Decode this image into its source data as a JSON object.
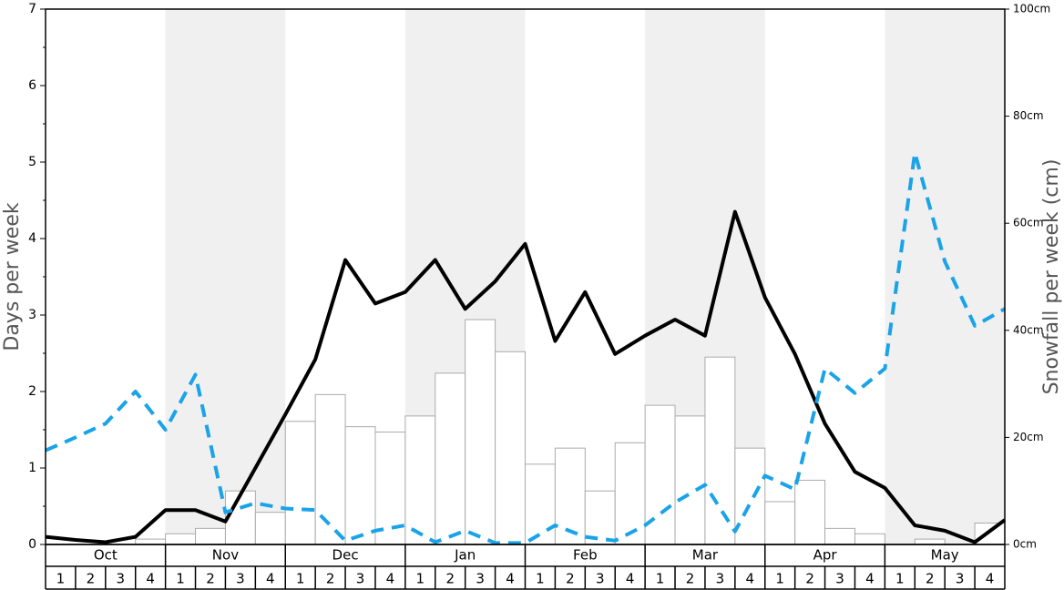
{
  "chart_data": {
    "type": "combo",
    "months": [
      "Oct",
      "Nov",
      "Dec",
      "Jan",
      "Feb",
      "Mar",
      "Apr",
      "May"
    ],
    "weeks": [
      1,
      2,
      3,
      4
    ],
    "shaded_color": "#f0f0f0",
    "ylabel": "Days per week",
    "y2label": "Snowfall per week (cm)",
    "ylim": [
      0,
      7
    ],
    "yticks": [
      0,
      1,
      2,
      3,
      4,
      5,
      6,
      7
    ],
    "yminorticks": [
      0.5,
      1.5,
      2.5,
      3.5,
      4.5,
      5.5,
      6.5
    ],
    "y2lim": [
      0,
      100
    ],
    "y2ticks": [
      {
        "value": 0,
        "label": "0cm"
      },
      {
        "value": 20,
        "label": "20cm"
      },
      {
        "value": 40,
        "label": "40cm"
      },
      {
        "value": 60,
        "label": "60cm"
      },
      {
        "value": 80,
        "label": "80cm"
      },
      {
        "value": 100,
        "label": "100cm"
      }
    ],
    "series": [
      {
        "type": "bar",
        "axis": "y2",
        "color": "#ffffff",
        "edgecolor": "#aaaaaa",
        "values": [
          0,
          0,
          0,
          1,
          2,
          3,
          10,
          6,
          23,
          28,
          22,
          21,
          24,
          32,
          42,
          36,
          15,
          18,
          10,
          19,
          26,
          24,
          35,
          18,
          8,
          12,
          3,
          2,
          0,
          1,
          0,
          4
        ]
      },
      {
        "type": "line",
        "color": "#000000",
        "dashed": false,
        "values": [
          0.1,
          0.06,
          0.03,
          0.1,
          0.45,
          0.45,
          0.3,
          1.0,
          1.7,
          2.42,
          3.72,
          3.15,
          3.3,
          3.72,
          3.08,
          3.44,
          3.93,
          2.66,
          3.3,
          2.49,
          2.73,
          2.94,
          2.73,
          4.35,
          3.23,
          2.49,
          1.58,
          0.95,
          0.74,
          0.25,
          0.18,
          0.03,
          0.32
        ]
      },
      {
        "type": "line",
        "color": "#1aa3e8",
        "dashed": true,
        "values": [
          1.23,
          1.4,
          1.58,
          2.0,
          1.5,
          2.22,
          0.42,
          0.54,
          0.47,
          0.45,
          0.05,
          0.18,
          0.25,
          0.03,
          0.18,
          0.02,
          0.02,
          0.25,
          0.1,
          0.05,
          0.25,
          0.55,
          0.78,
          0.17,
          0.9,
          0.72,
          2.3,
          1.98,
          2.3,
          5.12,
          3.7,
          2.86,
          3.08
        ]
      }
    ]
  }
}
